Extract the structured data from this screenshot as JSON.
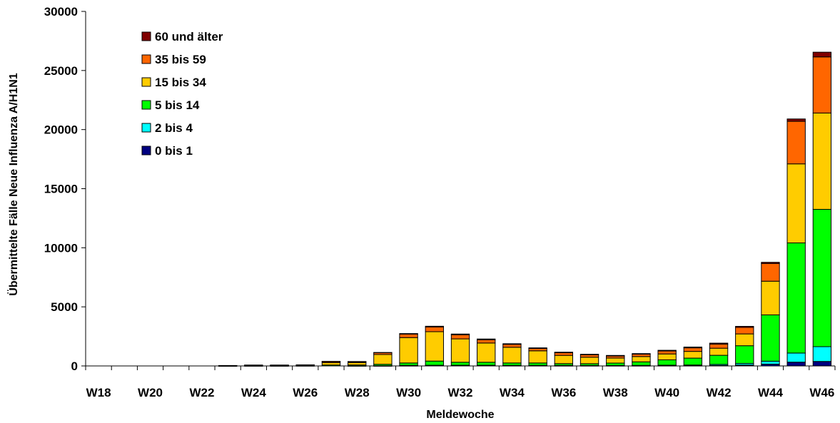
{
  "chart_data": {
    "type": "bar",
    "stacked": true,
    "xlabel": "Meldewoche",
    "ylabel": "Übermittelte Fälle Neue Influenza A/H1N1",
    "ylim": [
      0,
      30000
    ],
    "yticks": [
      0,
      5000,
      10000,
      15000,
      20000,
      25000,
      30000
    ],
    "categories": [
      "W18",
      "W19",
      "W20",
      "W21",
      "W22",
      "W23",
      "W24",
      "W25",
      "W26",
      "W27",
      "W28",
      "W29",
      "W30",
      "W31",
      "W32",
      "W33",
      "W34",
      "W35",
      "W36",
      "W37",
      "W38",
      "W39",
      "W40",
      "W41",
      "W42",
      "W43",
      "W44",
      "W45",
      "W46"
    ],
    "tick_labels": [
      "W18",
      "",
      "W20",
      "",
      "W22",
      "",
      "W24",
      "",
      "W26",
      "",
      "W28",
      "",
      "W30",
      "",
      "W32",
      "",
      "W34",
      "",
      "W36",
      "",
      "W38",
      "",
      "W40",
      "",
      "W42",
      "",
      "W44",
      "",
      "W46"
    ],
    "legend_position": "top-left",
    "series": [
      {
        "name": "0 bis 1",
        "color": "#000080",
        "values": [
          0,
          0,
          0,
          0,
          0,
          0,
          0,
          0,
          0,
          0,
          0,
          10,
          20,
          30,
          30,
          30,
          25,
          25,
          20,
          20,
          20,
          20,
          25,
          25,
          40,
          80,
          150,
          320,
          380
        ]
      },
      {
        "name": "2 bis 4",
        "color": "#00FFFF",
        "values": [
          0,
          0,
          0,
          0,
          0,
          0,
          0,
          0,
          0,
          0,
          5,
          10,
          30,
          30,
          30,
          30,
          25,
          25,
          25,
          20,
          20,
          25,
          40,
          55,
          90,
          130,
          250,
          770,
          1250
        ]
      },
      {
        "name": "5 bis 14",
        "color": "#00FF00",
        "values": [
          0,
          0,
          0,
          0,
          0,
          2,
          5,
          5,
          10,
          80,
          80,
          120,
          200,
          350,
          250,
          250,
          200,
          200,
          150,
          150,
          200,
          300,
          450,
          580,
          770,
          1500,
          3920,
          9320,
          11620
        ]
      },
      {
        "name": "15 bis 34",
        "color": "#FFCC00",
        "values": [
          0,
          0,
          0,
          0,
          0,
          20,
          45,
          45,
          50,
          200,
          200,
          830,
          2150,
          2490,
          1980,
          1630,
          1330,
          1030,
          700,
          550,
          430,
          450,
          500,
          570,
          600,
          1000,
          2850,
          6690,
          8150
        ]
      },
      {
        "name": "35 bis 59",
        "color": "#FF6600",
        "values": [
          0,
          0,
          0,
          0,
          0,
          10,
          20,
          20,
          30,
          100,
          80,
          150,
          300,
          400,
          350,
          280,
          250,
          200,
          220,
          200,
          170,
          200,
          250,
          300,
          350,
          550,
          1500,
          3600,
          4750
        ]
      },
      {
        "name": "60 und älter",
        "color": "#800000",
        "values": [
          0,
          0,
          0,
          0,
          0,
          3,
          5,
          5,
          5,
          10,
          10,
          20,
          40,
          60,
          60,
          60,
          50,
          50,
          50,
          50,
          50,
          50,
          60,
          70,
          80,
          90,
          100,
          200,
          400
        ]
      }
    ]
  }
}
